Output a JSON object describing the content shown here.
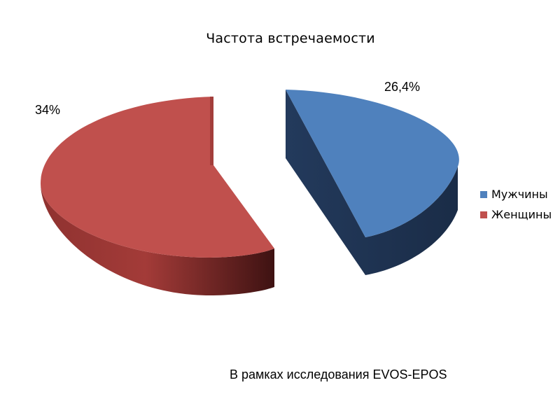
{
  "chart_data": {
    "type": "pie",
    "style": "3d-exploded",
    "title": "Частота встречаемости",
    "categories": [
      "Мужчины",
      "Женщины"
    ],
    "values": [
      26.4,
      34
    ],
    "data_labels": [
      "26,4%",
      "34%"
    ],
    "legend": {
      "placement": "right",
      "entries": [
        "Мужчины",
        "Женщины"
      ]
    },
    "colors": [
      "#4F81BD",
      "#C0504D"
    ]
  },
  "footnote": "В рамках исследования EVOS-EPOS"
}
